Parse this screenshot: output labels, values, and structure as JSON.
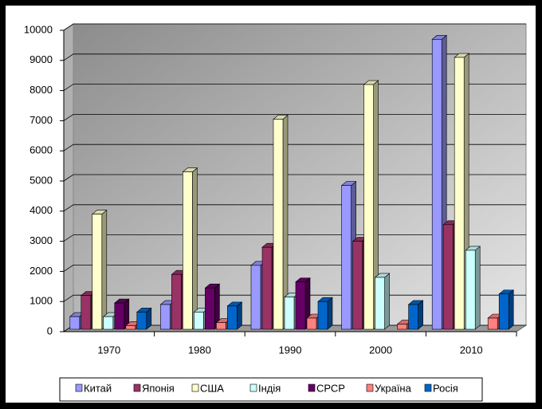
{
  "chart_data": {
    "type": "bar3d",
    "categories": [
      "1970",
      "1980",
      "1990",
      "2000",
      "2010"
    ],
    "series": [
      {
        "name": "Китай",
        "color": "#9999ff",
        "values": [
          500,
          900,
          2200,
          4850,
          9700
        ]
      },
      {
        "name": "Японія",
        "color": "#993366",
        "values": [
          1200,
          1900,
          2800,
          3000,
          3550
        ]
      },
      {
        "name": "США",
        "color": "#ffffcc",
        "values": [
          3900,
          5300,
          7050,
          8200,
          9100
        ]
      },
      {
        "name": "Індія",
        "color": "#ccffff",
        "values": [
          500,
          650,
          1150,
          1800,
          2700
        ]
      },
      {
        "name": "СРСР",
        "color": "#660066",
        "values": [
          950,
          1450,
          1650,
          null,
          null
        ]
      },
      {
        "name": "Україна",
        "color": "#ff8080",
        "values": [
          200,
          300,
          450,
          250,
          450
        ]
      },
      {
        "name": "Росія",
        "color": "#0066cc",
        "values": [
          650,
          850,
          1000,
          900,
          1250
        ]
      }
    ],
    "ylim": [
      0,
      10000
    ],
    "yticks": [
      0,
      1000,
      2000,
      3000,
      4000,
      5000,
      6000,
      7000,
      8000,
      9000,
      10000
    ],
    "grid": true,
    "legend": "bottom"
  }
}
